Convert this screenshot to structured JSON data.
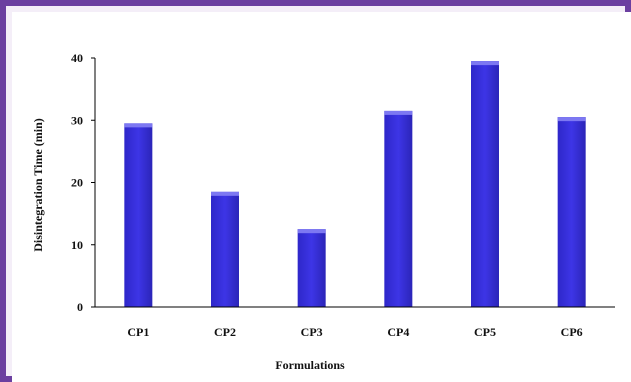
{
  "chart_data": {
    "type": "bar",
    "title": "",
    "xlabel": "Formulations",
    "ylabel": "Disintegration Time (min)",
    "categories": [
      "CP1",
      "CP2",
      "CP3",
      "CP4",
      "CP5",
      "CP6"
    ],
    "values": [
      29.5,
      18.5,
      12.5,
      31.5,
      39.5,
      30.5
    ],
    "ylim": [
      0,
      40
    ],
    "yticks": [
      "0",
      "10",
      "20",
      "30",
      "40"
    ],
    "grid": false,
    "legend": "none",
    "colors": {
      "bar": "#3d35e6",
      "bar_top": "#7d78f2",
      "frame": "#6b3fa0",
      "axis": "#000000"
    }
  }
}
